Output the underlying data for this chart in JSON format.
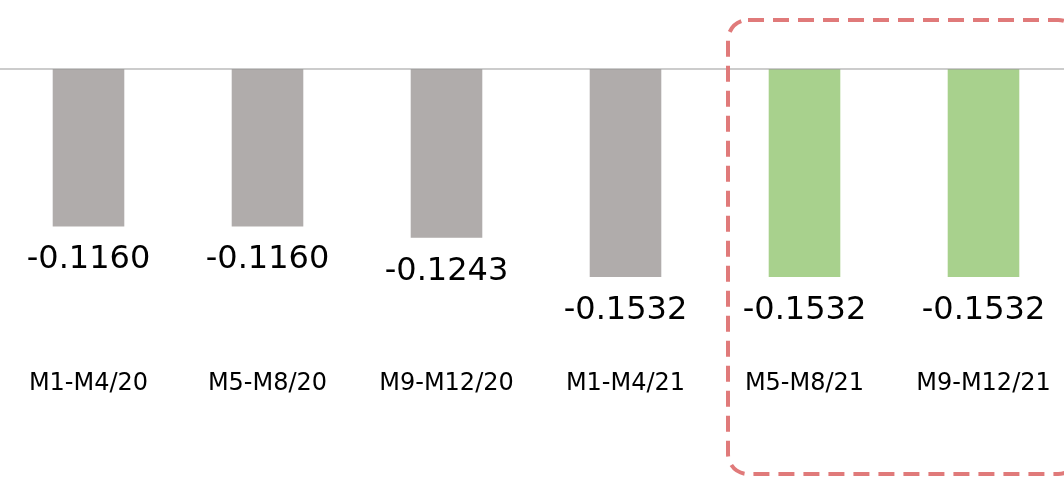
{
  "chart_data": {
    "type": "bar",
    "categories": [
      "M1-M4/20",
      "M5-M8/20",
      "M9-M12/20",
      "M1-M4/21",
      "M5-M8/21",
      "M9-M12/21"
    ],
    "values": [
      -0.116,
      -0.116,
      -0.1243,
      -0.1532,
      -0.1532,
      -0.1532
    ],
    "value_labels": [
      "-0.1160",
      "-0.1160",
      "-0.1243",
      "-0.1532",
      "-0.1532",
      "-0.1532"
    ],
    "colors": [
      "#b0acab",
      "#b0acab",
      "#b0acab",
      "#b0acab",
      "#a8d18d",
      "#a8d18d"
    ]
  }
}
